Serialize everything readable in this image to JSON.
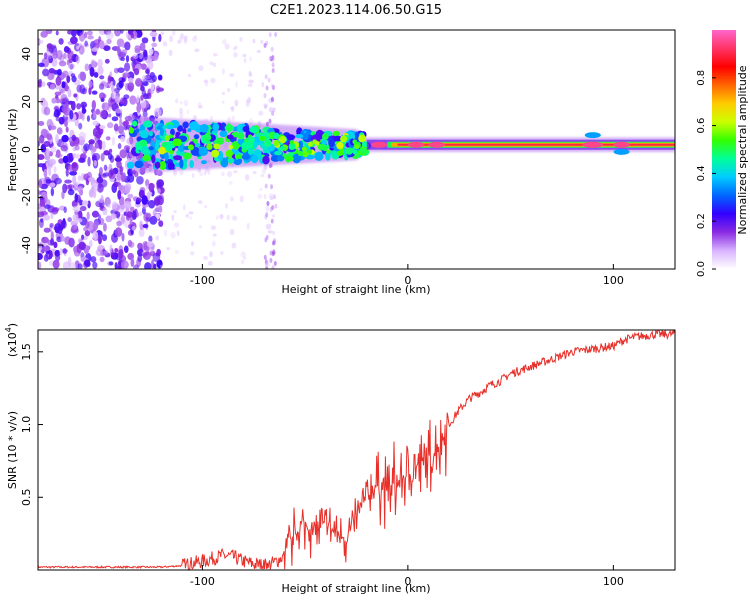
{
  "title": "C2E1.2023.114.06.50.G15",
  "chart_data": [
    {
      "type": "heatmap",
      "xlabel": "Height of straight line (km)",
      "ylabel": "Frequency (Hz)",
      "xlim": [
        -180,
        130
      ],
      "ylim": [
        -50,
        50
      ],
      "xticks": [
        -100,
        0,
        100
      ],
      "yticks": [
        -40,
        -20,
        0,
        20,
        40
      ],
      "colorbar": {
        "label": "Normalized spectral amplitude",
        "range": [
          0,
          1
        ],
        "ticks": [
          "0.0",
          "0.2",
          "0.4",
          "0.6",
          "0.8"
        ],
        "colormap": [
          "#ffffff",
          "#d9b3ff",
          "#8a2be2",
          "#3300ff",
          "#0066ff",
          "#00ccff",
          "#00ff99",
          "#33ff00",
          "#ccff00",
          "#ffcc00",
          "#ff6600",
          "#ff0000",
          "#ff3366",
          "#ff66cc"
        ]
      },
      "features": {
        "noise_region_x": [
          -180,
          -120
        ],
        "signal_line_frequency_hz": 2,
        "signal_start_x": -135,
        "strong_signal_from_x": -20
      }
    },
    {
      "type": "line",
      "xlabel": "Height of straight line (km)",
      "ylabel": "SNR (10 * v/v)",
      "y_multiplier_label": "(x10",
      "y_multiplier_exp": "4",
      "xlim": [
        -180,
        130
      ],
      "ylim": [
        0,
        1.65
      ],
      "xticks": [
        -100,
        0,
        100
      ],
      "yticks": [
        "0.5",
        "1.0",
        "1.5"
      ],
      "ytick_values": [
        0.5,
        1.0,
        1.5
      ],
      "color": "#e8302a",
      "series": [
        {
          "x": [
            -180,
            -160,
            -140,
            -120,
            -110,
            -100,
            -95,
            -90,
            -85,
            -80,
            -75,
            -70,
            -65,
            -60,
            -55,
            -50,
            -45,
            -40,
            -35,
            -30,
            -25,
            -20,
            -15,
            -10,
            -5,
            0,
            5,
            10,
            15,
            20,
            25,
            30,
            35,
            40,
            45,
            50,
            60,
            70,
            80,
            90,
            100,
            105,
            110,
            120,
            130
          ],
          "values": [
            0.02,
            0.02,
            0.02,
            0.02,
            0.03,
            0.06,
            0.08,
            0.1,
            0.09,
            0.06,
            0.04,
            0.03,
            0.05,
            0.1,
            0.25,
            0.3,
            0.28,
            0.3,
            0.25,
            0.22,
            0.35,
            0.5,
            0.6,
            0.55,
            0.6,
            0.65,
            0.7,
            0.75,
            0.85,
            1.0,
            1.1,
            1.18,
            1.22,
            1.27,
            1.3,
            1.35,
            1.4,
            1.45,
            1.5,
            1.52,
            1.54,
            1.58,
            1.6,
            1.62,
            1.62
          ]
        }
      ]
    }
  ]
}
